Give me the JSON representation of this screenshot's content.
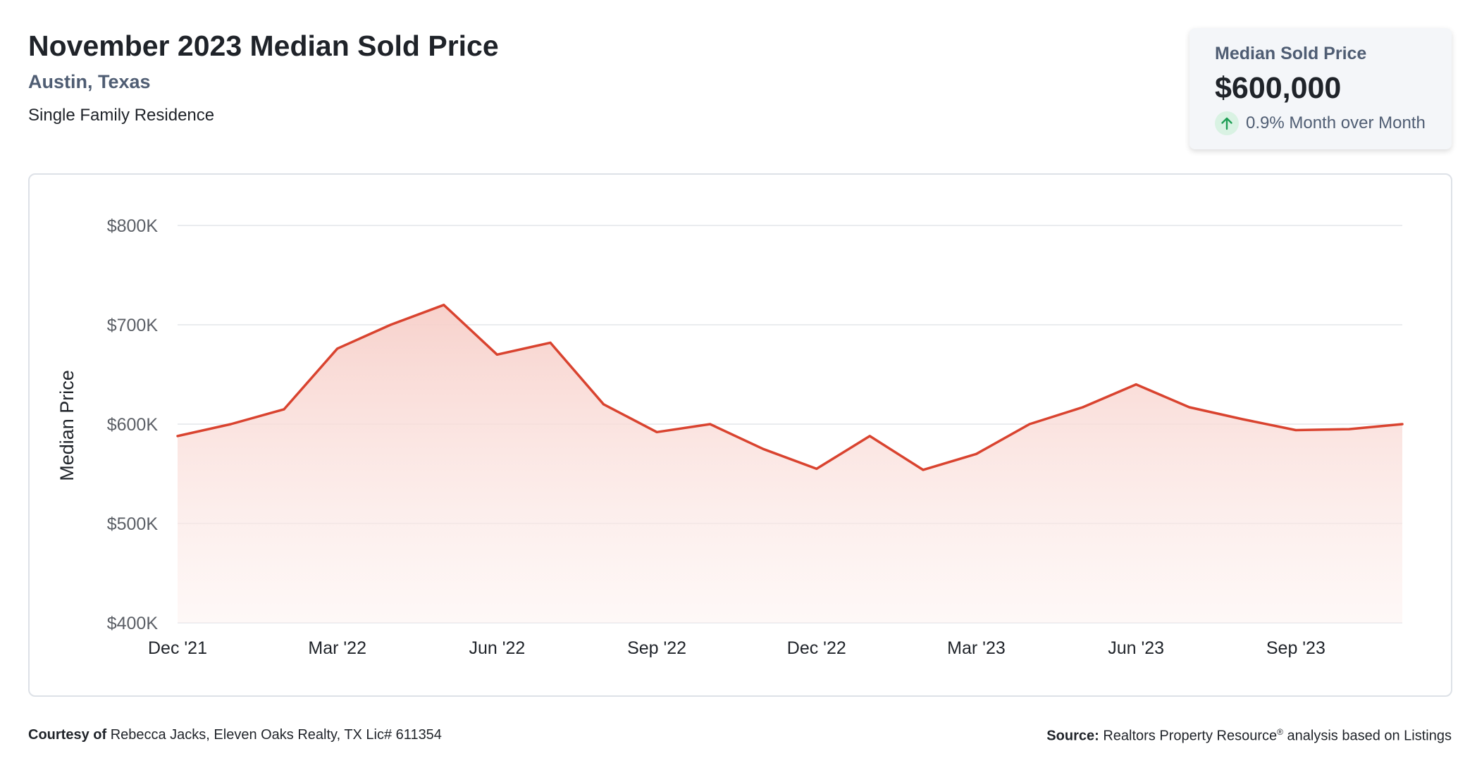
{
  "header": {
    "title": "November 2023 Median Sold Price",
    "location": "Austin, Texas",
    "property_type": "Single Family Residence"
  },
  "stat_card": {
    "label": "Median Sold Price",
    "value": "$600,000",
    "change_text": "0.9% Month over Month",
    "change_direction": "up",
    "icon": "arrow-up-icon"
  },
  "footer": {
    "courtesy_label": "Courtesy of",
    "courtesy_text": "Rebecca Jacks, Eleven Oaks Realty, TX Lic# 611354",
    "source_label": "Source:",
    "source_text_pre": "Realtors Property Resource",
    "source_mark": "®",
    "source_text_post": "analysis based on Listings"
  },
  "colors": {
    "line": "#d9432f",
    "fill": "#f9d8d3",
    "grid": "#e3e6ea",
    "axis_text": "#5b5f66",
    "up_green": "#1e9e55"
  },
  "chart_data": {
    "type": "area",
    "ylabel": "Median Price",
    "ylim": [
      400000,
      800000
    ],
    "yticks": [
      400000,
      500000,
      600000,
      700000,
      800000
    ],
    "ytick_labels": [
      "$400K",
      "$500K",
      "$600K",
      "$700K",
      "$800K"
    ],
    "x": [
      "Dec '21",
      "Jan '22",
      "Feb '22",
      "Mar '22",
      "Apr '22",
      "May '22",
      "Jun '22",
      "Jul '22",
      "Aug '22",
      "Sep '22",
      "Oct '22",
      "Nov '22",
      "Dec '22",
      "Jan '23",
      "Feb '23",
      "Mar '23",
      "Apr '23",
      "May '23",
      "Jun '23",
      "Jul '23",
      "Aug '23",
      "Sep '23",
      "Oct '23",
      "Nov '23"
    ],
    "xtick_labels": [
      "Dec '21",
      "Mar '22",
      "Jun '22",
      "Sep '22",
      "Dec '22",
      "Mar '23",
      "Jun '23",
      "Sep '23"
    ],
    "series": [
      {
        "values": [
          588000,
          600000,
          615000,
          676000,
          700000,
          720000,
          670000,
          682000,
          620000,
          592000,
          600000,
          575000,
          555000,
          588000,
          554000,
          570000,
          600000,
          617000,
          640000,
          617000,
          605000,
          594000,
          595000,
          600000
        ]
      }
    ],
    "grid": true,
    "legend": "none"
  }
}
